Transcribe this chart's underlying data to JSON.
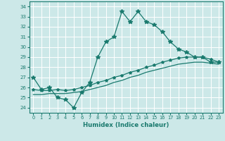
{
  "title": "",
  "xlabel": "Humidex (Indice chaleur)",
  "bg_color": "#cce8e8",
  "grid_color": "#ffffff",
  "line_color": "#1a7a6e",
  "xlim": [
    -0.5,
    23.5
  ],
  "ylim": [
    23.5,
    34.5
  ],
  "yticks": [
    24,
    25,
    26,
    27,
    28,
    29,
    30,
    31,
    32,
    33,
    34
  ],
  "xticks": [
    0,
    1,
    2,
    3,
    4,
    5,
    6,
    7,
    8,
    9,
    10,
    11,
    12,
    13,
    14,
    15,
    16,
    17,
    18,
    19,
    20,
    21,
    22,
    23
  ],
  "line1_x": [
    0,
    1,
    2,
    3,
    4,
    5,
    6,
    7,
    8,
    9,
    10,
    11,
    12,
    13,
    14,
    15,
    16,
    17,
    18,
    19,
    20,
    21,
    22,
    23
  ],
  "line1_y": [
    27.0,
    25.8,
    26.0,
    25.0,
    24.8,
    24.0,
    25.5,
    26.5,
    29.0,
    30.5,
    31.0,
    33.5,
    32.5,
    33.5,
    32.5,
    32.2,
    31.5,
    30.5,
    29.8,
    29.5,
    29.0,
    29.0,
    28.5,
    28.5
  ],
  "line2_x": [
    0,
    1,
    2,
    3,
    4,
    5,
    6,
    7,
    8,
    9,
    10,
    11,
    12,
    13,
    14,
    15,
    16,
    17,
    18,
    19,
    20,
    21,
    22,
    23
  ],
  "line2_y": [
    25.8,
    25.7,
    25.7,
    25.8,
    25.7,
    25.8,
    26.0,
    26.2,
    26.5,
    26.7,
    27.0,
    27.2,
    27.5,
    27.7,
    28.0,
    28.2,
    28.5,
    28.7,
    28.9,
    29.0,
    29.0,
    29.0,
    28.8,
    28.5
  ],
  "line3_x": [
    0,
    1,
    2,
    3,
    4,
    5,
    6,
    7,
    8,
    9,
    10,
    11,
    12,
    13,
    14,
    15,
    16,
    17,
    18,
    19,
    20,
    21,
    22,
    23
  ],
  "line3_y": [
    25.3,
    25.3,
    25.4,
    25.4,
    25.4,
    25.5,
    25.6,
    25.8,
    26.0,
    26.2,
    26.5,
    26.7,
    27.0,
    27.2,
    27.5,
    27.7,
    27.9,
    28.1,
    28.3,
    28.4,
    28.5,
    28.5,
    28.4,
    28.3
  ]
}
